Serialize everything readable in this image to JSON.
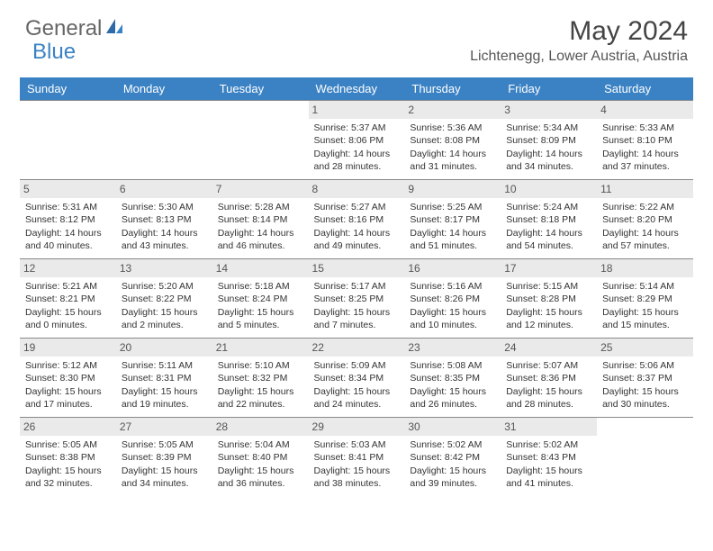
{
  "logo": {
    "text1": "General",
    "text2": "Blue"
  },
  "title": "May 2024",
  "location": "Lichtenegg, Lower Austria, Austria",
  "colors": {
    "header_bg": "#3b82c4",
    "header_text": "#ffffff",
    "daynum_bg": "#eaeaea",
    "border": "#888888",
    "body_text": "#333333"
  },
  "day_headers": [
    "Sunday",
    "Monday",
    "Tuesday",
    "Wednesday",
    "Thursday",
    "Friday",
    "Saturday"
  ],
  "weeks": [
    [
      null,
      null,
      null,
      {
        "n": "1",
        "sr": "5:37 AM",
        "ss": "8:06 PM",
        "dl": "14 hours and 28 minutes."
      },
      {
        "n": "2",
        "sr": "5:36 AM",
        "ss": "8:08 PM",
        "dl": "14 hours and 31 minutes."
      },
      {
        "n": "3",
        "sr": "5:34 AM",
        "ss": "8:09 PM",
        "dl": "14 hours and 34 minutes."
      },
      {
        "n": "4",
        "sr": "5:33 AM",
        "ss": "8:10 PM",
        "dl": "14 hours and 37 minutes."
      }
    ],
    [
      {
        "n": "5",
        "sr": "5:31 AM",
        "ss": "8:12 PM",
        "dl": "14 hours and 40 minutes."
      },
      {
        "n": "6",
        "sr": "5:30 AM",
        "ss": "8:13 PM",
        "dl": "14 hours and 43 minutes."
      },
      {
        "n": "7",
        "sr": "5:28 AM",
        "ss": "8:14 PM",
        "dl": "14 hours and 46 minutes."
      },
      {
        "n": "8",
        "sr": "5:27 AM",
        "ss": "8:16 PM",
        "dl": "14 hours and 49 minutes."
      },
      {
        "n": "9",
        "sr": "5:25 AM",
        "ss": "8:17 PM",
        "dl": "14 hours and 51 minutes."
      },
      {
        "n": "10",
        "sr": "5:24 AM",
        "ss": "8:18 PM",
        "dl": "14 hours and 54 minutes."
      },
      {
        "n": "11",
        "sr": "5:22 AM",
        "ss": "8:20 PM",
        "dl": "14 hours and 57 minutes."
      }
    ],
    [
      {
        "n": "12",
        "sr": "5:21 AM",
        "ss": "8:21 PM",
        "dl": "15 hours and 0 minutes."
      },
      {
        "n": "13",
        "sr": "5:20 AM",
        "ss": "8:22 PM",
        "dl": "15 hours and 2 minutes."
      },
      {
        "n": "14",
        "sr": "5:18 AM",
        "ss": "8:24 PM",
        "dl": "15 hours and 5 minutes."
      },
      {
        "n": "15",
        "sr": "5:17 AM",
        "ss": "8:25 PM",
        "dl": "15 hours and 7 minutes."
      },
      {
        "n": "16",
        "sr": "5:16 AM",
        "ss": "8:26 PM",
        "dl": "15 hours and 10 minutes."
      },
      {
        "n": "17",
        "sr": "5:15 AM",
        "ss": "8:28 PM",
        "dl": "15 hours and 12 minutes."
      },
      {
        "n": "18",
        "sr": "5:14 AM",
        "ss": "8:29 PM",
        "dl": "15 hours and 15 minutes."
      }
    ],
    [
      {
        "n": "19",
        "sr": "5:12 AM",
        "ss": "8:30 PM",
        "dl": "15 hours and 17 minutes."
      },
      {
        "n": "20",
        "sr": "5:11 AM",
        "ss": "8:31 PM",
        "dl": "15 hours and 19 minutes."
      },
      {
        "n": "21",
        "sr": "5:10 AM",
        "ss": "8:32 PM",
        "dl": "15 hours and 22 minutes."
      },
      {
        "n": "22",
        "sr": "5:09 AM",
        "ss": "8:34 PM",
        "dl": "15 hours and 24 minutes."
      },
      {
        "n": "23",
        "sr": "5:08 AM",
        "ss": "8:35 PM",
        "dl": "15 hours and 26 minutes."
      },
      {
        "n": "24",
        "sr": "5:07 AM",
        "ss": "8:36 PM",
        "dl": "15 hours and 28 minutes."
      },
      {
        "n": "25",
        "sr": "5:06 AM",
        "ss": "8:37 PM",
        "dl": "15 hours and 30 minutes."
      }
    ],
    [
      {
        "n": "26",
        "sr": "5:05 AM",
        "ss": "8:38 PM",
        "dl": "15 hours and 32 minutes."
      },
      {
        "n": "27",
        "sr": "5:05 AM",
        "ss": "8:39 PM",
        "dl": "15 hours and 34 minutes."
      },
      {
        "n": "28",
        "sr": "5:04 AM",
        "ss": "8:40 PM",
        "dl": "15 hours and 36 minutes."
      },
      {
        "n": "29",
        "sr": "5:03 AM",
        "ss": "8:41 PM",
        "dl": "15 hours and 38 minutes."
      },
      {
        "n": "30",
        "sr": "5:02 AM",
        "ss": "8:42 PM",
        "dl": "15 hours and 39 minutes."
      },
      {
        "n": "31",
        "sr": "5:02 AM",
        "ss": "8:43 PM",
        "dl": "15 hours and 41 minutes."
      },
      null
    ]
  ],
  "labels": {
    "sunrise": "Sunrise:",
    "sunset": "Sunset:",
    "daylight": "Daylight:"
  }
}
